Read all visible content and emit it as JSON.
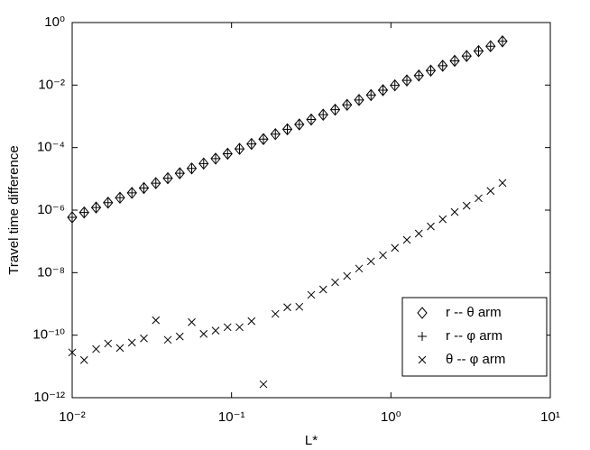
{
  "chart_data": {
    "type": "scatter",
    "xlabel": "L*",
    "ylabel": "Travel time difference",
    "xscale": "log",
    "yscale": "log",
    "xlim": [
      0.01,
      10
    ],
    "ylim": [
      1e-12,
      1
    ],
    "xticks": [
      {
        "value": 0.01,
        "label": "10⁻²"
      },
      {
        "value": 0.1,
        "label": "10⁻¹"
      },
      {
        "value": 1,
        "label": "10⁰"
      },
      {
        "value": 10,
        "label": "10¹"
      }
    ],
    "yticks": [
      {
        "value": 1e-12,
        "label": "10⁻¹²"
      },
      {
        "value": 1e-10,
        "label": "10⁻¹⁰"
      },
      {
        "value": 1e-08,
        "label": "10⁻⁸"
      },
      {
        "value": 1e-06,
        "label": "10⁻⁶"
      },
      {
        "value": 0.0001,
        "label": "10⁻⁴"
      },
      {
        "value": 0.01,
        "label": "10⁻²"
      },
      {
        "value": 1,
        "label": "10⁰"
      }
    ],
    "legend": "lower right",
    "x": [
      0.01,
      0.01189,
      0.01413,
      0.01679,
      0.01995,
      0.02371,
      0.02818,
      0.0335,
      0.03981,
      0.04732,
      0.05623,
      0.06683,
      0.07943,
      0.09441,
      0.1122,
      0.1334,
      0.1585,
      0.1884,
      0.2239,
      0.2661,
      0.3162,
      0.3758,
      0.4467,
      0.5309,
      0.631,
      0.7499,
      0.8913,
      1.059,
      1.259,
      1.496,
      1.778,
      2.113,
      2.512,
      2.985,
      3.548,
      4.217,
      5.012
    ],
    "series": [
      {
        "name": "r -- θ arm",
        "marker": "diamond",
        "color": "#000000",
        "values": [
          5.9e-07,
          8.4e-07,
          1.21e-06,
          1.73e-06,
          2.49e-06,
          3.56e-06,
          5.1e-06,
          7.3e-06,
          1.05e-05,
          1.51e-05,
          2.16e-05,
          3.09e-05,
          4.44e-05,
          6.35e-05,
          9.1e-05,
          0.000131,
          0.000187,
          0.000269,
          0.000385,
          0.00055,
          0.00079,
          0.00113,
          0.00163,
          0.00233,
          0.00334,
          0.00479,
          0.00686,
          0.0098,
          0.0141,
          0.0202,
          0.029,
          0.0415,
          0.0596,
          0.085,
          0.122,
          0.175,
          0.251
        ]
      },
      {
        "name": "r -- φ arm",
        "marker": "plus",
        "color": "#000000",
        "values": [
          5.9e-07,
          8.4e-07,
          1.21e-06,
          1.73e-06,
          2.49e-06,
          3.56e-06,
          5.1e-06,
          7.3e-06,
          1.05e-05,
          1.51e-05,
          2.16e-05,
          3.09e-05,
          4.44e-05,
          6.35e-05,
          9.1e-05,
          0.000131,
          0.000187,
          0.000269,
          0.000385,
          0.00055,
          0.00079,
          0.00113,
          0.00163,
          0.00233,
          0.00334,
          0.00479,
          0.00686,
          0.0098,
          0.0141,
          0.0202,
          0.029,
          0.0415,
          0.0596,
          0.085,
          0.122,
          0.175,
          0.251
        ]
      },
      {
        "name": "θ -- φ arm",
        "marker": "x",
        "color": "#000000",
        "values": [
          2.8e-11,
          1.6e-11,
          3.6e-11,
          5.4e-11,
          3.9e-11,
          5.8e-11,
          7.9e-11,
          3e-10,
          7.1e-11,
          9.1e-11,
          2.6e-10,
          1.1e-10,
          1.4e-10,
          1.8e-10,
          1.8e-10,
          2.8e-10,
          2.7e-12,
          4.8e-10,
          7.8e-10,
          8.1e-10,
          1.95e-09,
          2.9e-09,
          4.9e-09,
          7.8e-09,
          1.35e-08,
          2.3e-08,
          3.6e-08,
          6.2e-08,
          1.12e-07,
          1.78e-07,
          3e-07,
          5.1e-07,
          8.7e-07,
          1.38e-06,
          2.4e-06,
          4.1e-06,
          7.4e-06
        ]
      }
    ]
  }
}
